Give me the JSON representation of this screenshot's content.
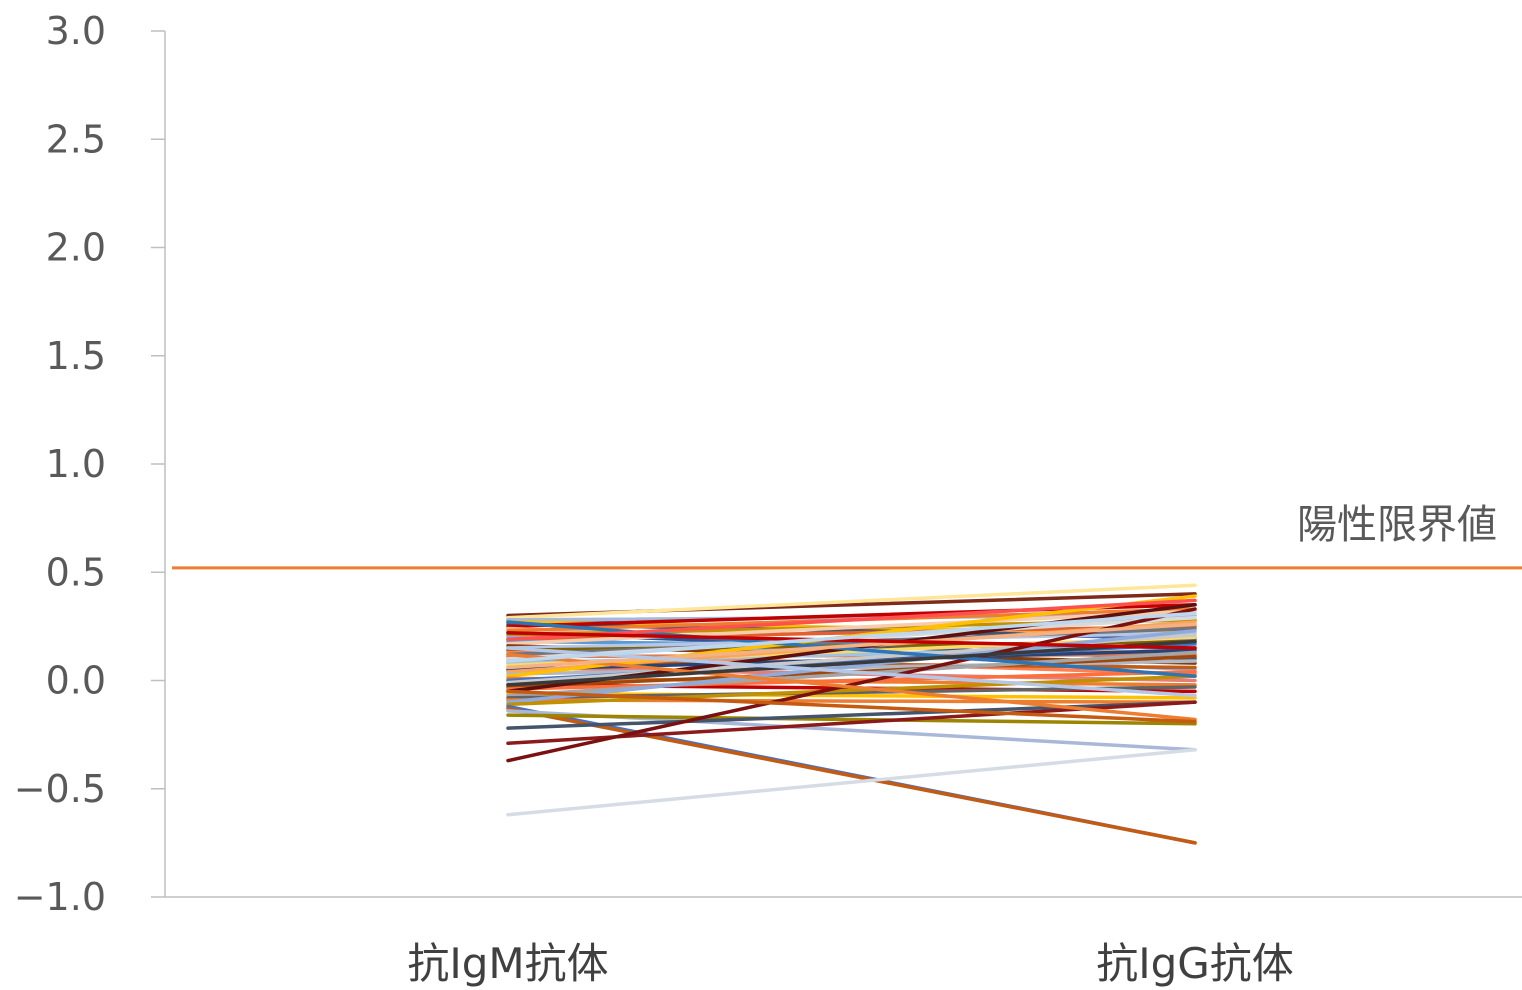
{
  "chart_data": {
    "type": "line",
    "title": "",
    "xlabel": "",
    "ylabel": "",
    "categories": [
      "抗IgM抗体",
      "抗IgG抗体"
    ],
    "ylim": [
      -1.0,
      3.0
    ],
    "yticks": [
      "3.0",
      "2.5",
      "2.0",
      "1.5",
      "1.0",
      "0.5",
      "0.0",
      "−0.5",
      "−1.0"
    ],
    "ytick_values": [
      3.0,
      2.5,
      2.0,
      1.5,
      1.0,
      0.5,
      0.0,
      -0.5,
      -1.0
    ],
    "grid": false,
    "legend": "none",
    "reference_line": {
      "label": "陽性限界値",
      "value": 0.52,
      "color": "#ED7D31"
    },
    "series": [
      {
        "values": [
          0.3,
          0.4
        ],
        "color": "#7F2A1B"
      },
      {
        "values": [
          0.29,
          0.44
        ],
        "color": "#FFE699"
      },
      {
        "values": [
          0.28,
          0.19
        ],
        "color": "#4472C4"
      },
      {
        "values": [
          0.28,
          0.3
        ],
        "color": "#A9B8D9"
      },
      {
        "values": [
          0.27,
          0.22
        ],
        "color": "#FFC000"
      },
      {
        "values": [
          0.26,
          0.2
        ],
        "color": "#44546A"
      },
      {
        "values": [
          0.25,
          0.35
        ],
        "color": "#C00000"
      },
      {
        "values": [
          0.24,
          0.12
        ],
        "color": "#F4B183"
      },
      {
        "values": [
          0.23,
          0.33
        ],
        "color": "#ED7D31"
      },
      {
        "values": [
          0.22,
          0.1
        ],
        "color": "#2F5597"
      },
      {
        "values": [
          0.21,
          0.28
        ],
        "color": "#BF9000"
      },
      {
        "values": [
          0.2,
          0.05
        ],
        "color": "#8FAADC"
      },
      {
        "values": [
          0.19,
          0.25
        ],
        "color": "#E06030"
      },
      {
        "values": [
          0.18,
          0.15
        ],
        "color": "#5B9BD5"
      },
      {
        "values": [
          0.17,
          0.32
        ],
        "color": "#F8CBAD"
      },
      {
        "values": [
          0.16,
          0.08
        ],
        "color": "#843C0C"
      },
      {
        "values": [
          0.15,
          0.22
        ],
        "color": "#B4C7E7"
      },
      {
        "values": [
          0.14,
          0.18
        ],
        "color": "#806000"
      },
      {
        "values": [
          0.13,
          0.03
        ],
        "color": "#FF7F50"
      },
      {
        "values": [
          0.12,
          0.24
        ],
        "color": "#70757F"
      },
      {
        "values": [
          0.11,
          0.12
        ],
        "color": "#DE7B52"
      },
      {
        "values": [
          0.1,
          0.29
        ],
        "color": "#D9D9D9"
      },
      {
        "values": [
          0.09,
          0.06
        ],
        "color": "#C55A11"
      },
      {
        "values": [
          0.08,
          0.16
        ],
        "color": "#9DC3E6"
      },
      {
        "values": [
          0.07,
          0.2
        ],
        "color": "#FFD966"
      },
      {
        "values": [
          0.06,
          0.0
        ],
        "color": "#E47E79"
      },
      {
        "values": [
          0.05,
          0.14
        ],
        "color": "#264478"
      },
      {
        "values": [
          0.04,
          0.27
        ],
        "color": "#F8A55B"
      },
      {
        "values": [
          0.03,
          0.09
        ],
        "color": "#B0B8C8"
      },
      {
        "values": [
          0.02,
          0.39
        ],
        "color": "#FFC000"
      },
      {
        "values": [
          0.01,
          -0.02
        ],
        "color": "#ED7D31"
      },
      {
        "values": [
          0.0,
          0.17
        ],
        "color": "#4472C4"
      },
      {
        "values": [
          -0.01,
          0.21
        ],
        "color": "#C9C9C9"
      },
      {
        "values": [
          -0.02,
          -0.05
        ],
        "color": "#C00000"
      },
      {
        "values": [
          -0.03,
          0.11
        ],
        "color": "#9E480E"
      },
      {
        "values": [
          -0.04,
          0.04
        ],
        "color": "#FF6F3C"
      },
      {
        "values": [
          -0.05,
          0.35
        ],
        "color": "#5C1010"
      },
      {
        "values": [
          -0.06,
          -0.08
        ],
        "color": "#FFC000"
      },
      {
        "values": [
          -0.07,
          0.13
        ],
        "color": "#A5A5A5"
      },
      {
        "values": [
          -0.08,
          -0.03
        ],
        "color": "#636363"
      },
      {
        "values": [
          -0.09,
          -0.1
        ],
        "color": "#ED7D31"
      },
      {
        "values": [
          -0.1,
          0.23
        ],
        "color": "#8FAADC"
      },
      {
        "values": [
          -0.11,
          0.02
        ],
        "color": "#BF9000"
      },
      {
        "values": [
          -0.12,
          -0.75
        ],
        "color": "#4472C4"
      },
      {
        "values": [
          -0.13,
          -0.75
        ],
        "color": "#C55A11"
      },
      {
        "values": [
          -0.14,
          -0.32
        ],
        "color": "#A9B8D9"
      },
      {
        "values": [
          -0.16,
          -0.2
        ],
        "color": "#9C8500"
      },
      {
        "values": [
          -0.22,
          -0.1
        ],
        "color": "#44546A"
      },
      {
        "values": [
          -0.29,
          -0.1
        ],
        "color": "#8B1A1A"
      },
      {
        "values": [
          -0.37,
          0.33
        ],
        "color": "#7A1010"
      },
      {
        "values": [
          -0.62,
          -0.32
        ],
        "color": "#D6DCE5"
      },
      {
        "values": [
          0.27,
          0.02
        ],
        "color": "#2E75B6"
      },
      {
        "values": [
          0.19,
          0.37
        ],
        "color": "#FF5050"
      },
      {
        "values": [
          0.12,
          -0.18
        ],
        "color": "#ED7D31"
      },
      {
        "values": [
          0.06,
          0.26
        ],
        "color": "#F4B183"
      },
      {
        "values": [
          -0.02,
          0.18
        ],
        "color": "#3A3A3A"
      },
      {
        "values": [
          0.15,
          -0.07
        ],
        "color": "#B4C7E7"
      },
      {
        "values": [
          0.22,
          0.15
        ],
        "color": "#C00000"
      },
      {
        "values": [
          -0.05,
          -0.19
        ],
        "color": "#C55A11"
      },
      {
        "values": [
          0.09,
          0.31
        ],
        "color": "#BDD7EE"
      }
    ]
  }
}
